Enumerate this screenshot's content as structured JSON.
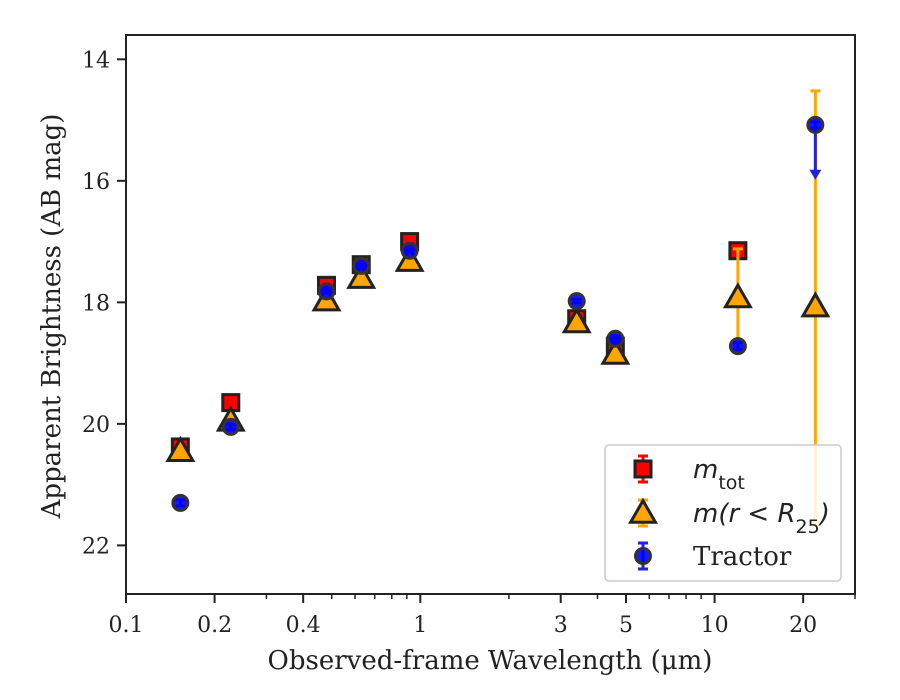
{
  "chart_data": {
    "type": "scatter",
    "xlabel": "Observed-frame Wavelength (μm)",
    "ylabel": "Apparent Brightness (AB mag)",
    "x_scale": "log",
    "y_inverted": true,
    "xlim": [
      0.1,
      30
    ],
    "ylim": [
      13.6,
      22.8
    ],
    "x_ticks": [
      {
        "value": 0.1,
        "label": "0.1"
      },
      {
        "value": 0.2,
        "label": "0.2"
      },
      {
        "value": 0.4,
        "label": "0.4"
      },
      {
        "value": 1,
        "label": "1"
      },
      {
        "value": 3,
        "label": "3"
      },
      {
        "value": 5,
        "label": "5"
      },
      {
        "value": 10,
        "label": "10"
      },
      {
        "value": 20,
        "label": "20"
      }
    ],
    "y_ticks": [
      {
        "value": 14,
        "label": "14"
      },
      {
        "value": 16,
        "label": "16"
      },
      {
        "value": 18,
        "label": "18"
      },
      {
        "value": 20,
        "label": "20"
      },
      {
        "value": 22,
        "label": "22"
      }
    ],
    "grid": false,
    "legend_position": "bottom-right",
    "series": [
      {
        "name": "m_tot",
        "label_main": "m",
        "label_sub": "tot",
        "marker": "square",
        "color": "#ff0000",
        "edge": "#222222",
        "error_color": "#ff0000",
        "x": [
          0.153,
          0.227,
          0.48,
          0.63,
          0.92,
          3.4,
          4.6,
          12.0,
          22.0
        ],
        "y": [
          20.38,
          19.65,
          17.72,
          17.38,
          17.0,
          18.27,
          18.72,
          17.15,
          null
        ],
        "yerr": [
          0.05,
          0.05,
          0.02,
          0.02,
          0.02,
          0.05,
          0.06,
          0.07,
          null
        ]
      },
      {
        "name": "m(r < R_25)",
        "label_main": "m(r < R",
        "label_sub": "25",
        "label_tail": ")",
        "marker": "triangle",
        "color": "#ffa500",
        "edge": "#222222",
        "error_color": "#ffa500",
        "x": [
          0.153,
          0.227,
          0.48,
          0.63,
          0.92,
          3.4,
          4.6,
          12.0,
          22.0
        ],
        "y": [
          20.45,
          19.95,
          17.97,
          17.6,
          17.32,
          18.33,
          18.85,
          17.92,
          18.07
        ],
        "yerr_low": [
          0.03,
          0.03,
          0.02,
          0.02,
          0.02,
          0.04,
          0.05,
          0.8,
          3.55
        ],
        "yerr_high": [
          0.03,
          0.03,
          0.02,
          0.02,
          0.02,
          0.04,
          0.05,
          0.8,
          3.55
        ]
      },
      {
        "name": "Tractor",
        "label_main": "Tractor",
        "marker": "circle",
        "color": "#0000ff",
        "edge": "#333333",
        "error_color": "#2222dd",
        "x": [
          0.153,
          0.227,
          0.48,
          0.63,
          0.92,
          3.4,
          4.6,
          12.0,
          22.0
        ],
        "y": [
          21.3,
          20.05,
          17.82,
          17.4,
          17.15,
          17.98,
          18.6,
          18.72,
          15.08
        ],
        "yerr": [
          0.05,
          0.04,
          0.02,
          0.02,
          0.02,
          0.03,
          0.05,
          0.06,
          0.05
        ],
        "upper_limit_index": 8,
        "upper_limit_to": 15.95
      }
    ]
  }
}
